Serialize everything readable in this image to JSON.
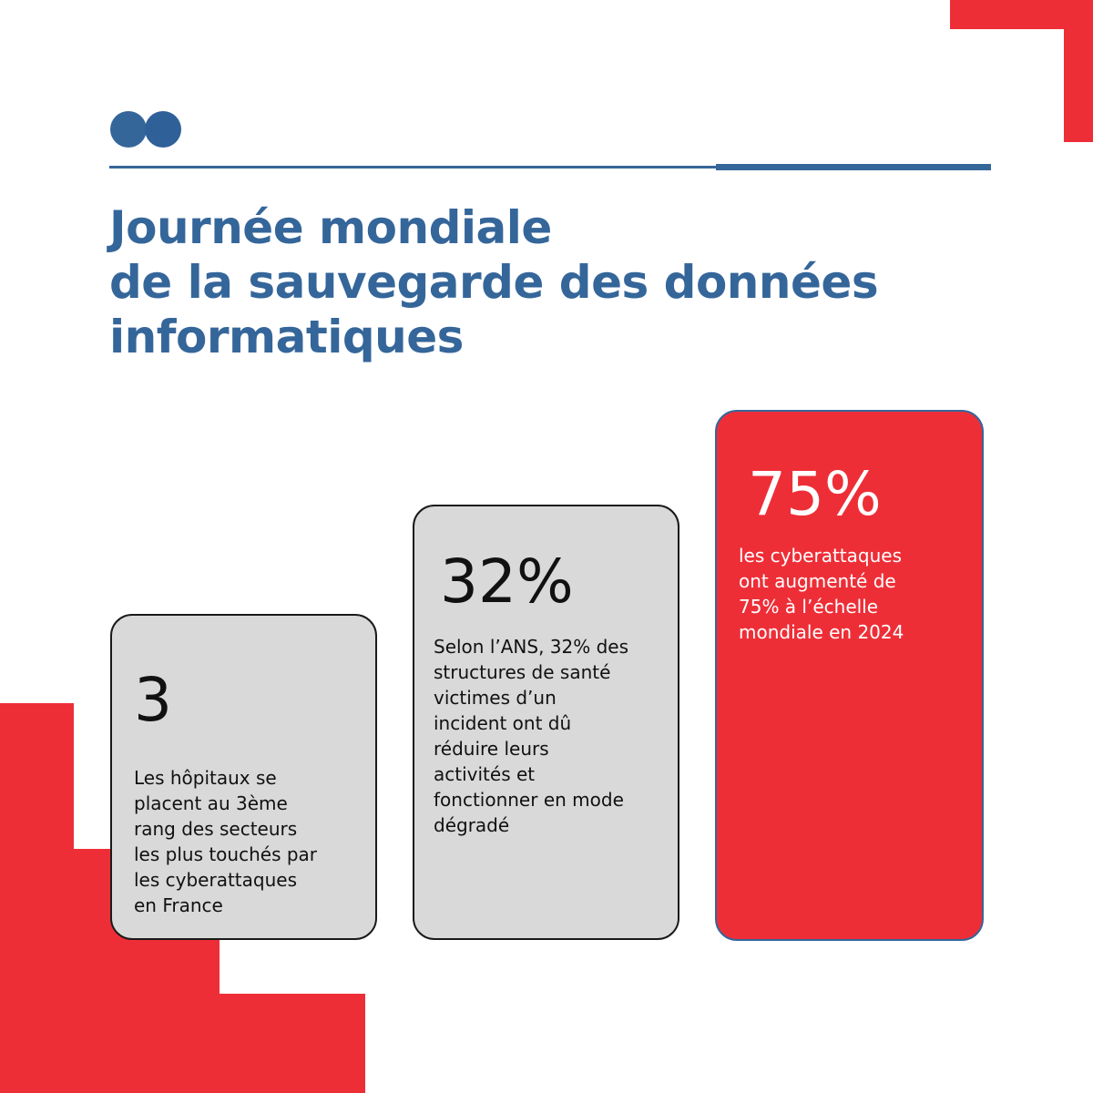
{
  "header": {
    "logo_icon": "two-blue-dots-logo",
    "title_lines": [
      "Journée mondiale",
      "de la sauvegarde des données",
      "informatiques"
    ]
  },
  "colors": {
    "brand_blue": "#35669a",
    "accent_red": "#ee2e37",
    "card_gray": "#d9d9d9"
  },
  "cards": [
    {
      "stat": "3",
      "lines": [
        "Les hôpitaux se",
        "placent au 3ème",
        "rang des secteurs",
        "les plus touchés par",
        "les cyberattaques",
        "en France"
      ]
    },
    {
      "stat": "32%",
      "lines": [
        "Selon l’ANS, 32% des",
        "structures de santé",
        "victimes d’un",
        "incident ont dû",
        "réduire leurs",
        "activités et",
        "fonctionner en mode",
        "dégradé"
      ]
    },
    {
      "stat": "75%",
      "lines": [
        "les cyberattaques",
        "ont augmenté de",
        "75% à l’échelle",
        "mondiale en 2024"
      ]
    }
  ]
}
